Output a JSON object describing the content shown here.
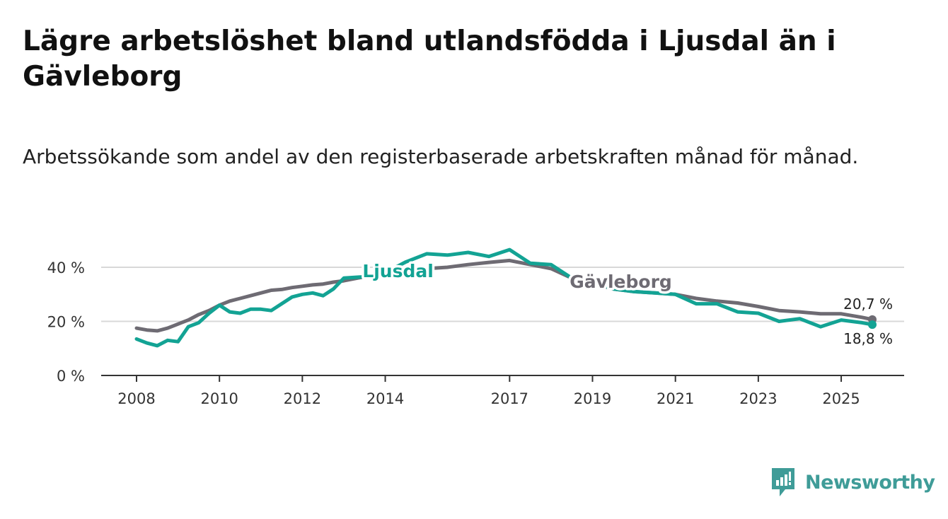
{
  "title": "Lägre arbetslöshet bland utlandsfödda i Ljusdal än i Gävleborg",
  "subtitle": "Arbetssökande som andel av den registerbaserade arbetskraften månad för månad.",
  "brand": {
    "name": "Newsworthy",
    "color": "#3f9c98"
  },
  "colors": {
    "ljusdal": "#13a394",
    "gavleborg": "#6e6b73",
    "grid": "#d8d8d8",
    "axis": "#333333"
  },
  "chart_data": {
    "type": "line",
    "title": "Lägre arbetslöshet bland utlandsfödda i Ljusdal än i Gävleborg",
    "subtitle": "Arbetssökande som andel av den registerbaserade arbetskraften månad för månad.",
    "xlabel": "",
    "ylabel": "",
    "xlim": [
      2008.0,
      2026.5
    ],
    "ylim": [
      0,
      40
    ],
    "y_ticks": [
      0,
      20,
      40
    ],
    "y_tick_labels": [
      "0 %",
      "20 %",
      "40 %"
    ],
    "x_ticks": [
      2008,
      2010,
      2012,
      2014,
      2017,
      2019,
      2021,
      2023,
      2025
    ],
    "x_tick_labels": [
      "2008",
      "2010",
      "2012",
      "2014",
      "2017",
      "2019",
      "2021",
      "2023",
      "2025"
    ],
    "grid": true,
    "series": [
      {
        "name": "Gävleborg",
        "label": "Gävleborg",
        "end_label": "20,7 %",
        "x": [
          2008.0,
          2008.25,
          2008.5,
          2008.75,
          2009.0,
          2009.25,
          2009.5,
          2009.75,
          2010.0,
          2010.25,
          2010.5,
          2010.75,
          2011.0,
          2011.25,
          2011.5,
          2011.75,
          2012.0,
          2012.25,
          2012.5,
          2012.75,
          2013.0,
          2013.5,
          2014.0,
          2014.5,
          2015.0,
          2015.5,
          2016.0,
          2016.5,
          2017.0,
          2017.5,
          2018.0,
          2018.5,
          2019.0,
          2019.5,
          2020.0,
          2020.5,
          2021.0,
          2021.5,
          2022.0,
          2022.5,
          2023.0,
          2023.5,
          2024.0,
          2024.5,
          2025.0,
          2025.5,
          2025.75
        ],
        "values": [
          17.5,
          16.8,
          16.5,
          17.5,
          19.0,
          20.5,
          22.5,
          24.0,
          26.0,
          27.5,
          28.5,
          29.5,
          30.5,
          31.5,
          31.8,
          32.5,
          33.0,
          33.5,
          33.8,
          34.5,
          35.0,
          36.5,
          37.5,
          38.5,
          39.5,
          40.0,
          41.0,
          41.8,
          42.5,
          41.0,
          39.5,
          36.0,
          34.0,
          32.0,
          31.0,
          30.5,
          30.0,
          28.5,
          27.5,
          26.8,
          25.5,
          24.0,
          23.5,
          22.8,
          22.8,
          21.5,
          20.7
        ]
      },
      {
        "name": "Ljusdal",
        "label": "Ljusdal",
        "end_label": "18,8 %",
        "x": [
          2008.0,
          2008.25,
          2008.5,
          2008.75,
          2009.0,
          2009.25,
          2009.5,
          2009.75,
          2010.0,
          2010.25,
          2010.5,
          2010.75,
          2011.0,
          2011.25,
          2011.5,
          2011.75,
          2012.0,
          2012.25,
          2012.5,
          2012.75,
          2013.0,
          2013.5,
          2014.0,
          2014.5,
          2015.0,
          2015.5,
          2016.0,
          2016.5,
          2017.0,
          2017.5,
          2018.0,
          2018.5,
          2019.0,
          2019.5,
          2020.0,
          2020.5,
          2021.0,
          2021.5,
          2022.0,
          2022.5,
          2023.0,
          2023.5,
          2024.0,
          2024.5,
          2025.0,
          2025.5,
          2025.75
        ],
        "values": [
          13.5,
          12.0,
          11.0,
          13.0,
          12.5,
          18.0,
          19.5,
          23.0,
          26.0,
          23.5,
          23.0,
          24.5,
          24.5,
          24.0,
          26.5,
          29.0,
          30.0,
          30.5,
          29.5,
          32.0,
          36.0,
          36.5,
          38.0,
          42.0,
          45.0,
          44.5,
          45.5,
          44.0,
          46.5,
          41.5,
          41.0,
          36.0,
          34.5,
          32.0,
          31.0,
          30.5,
          30.0,
          26.5,
          26.5,
          23.5,
          23.0,
          20.0,
          21.0,
          18.0,
          20.5,
          19.5,
          18.8
        ]
      }
    ]
  }
}
